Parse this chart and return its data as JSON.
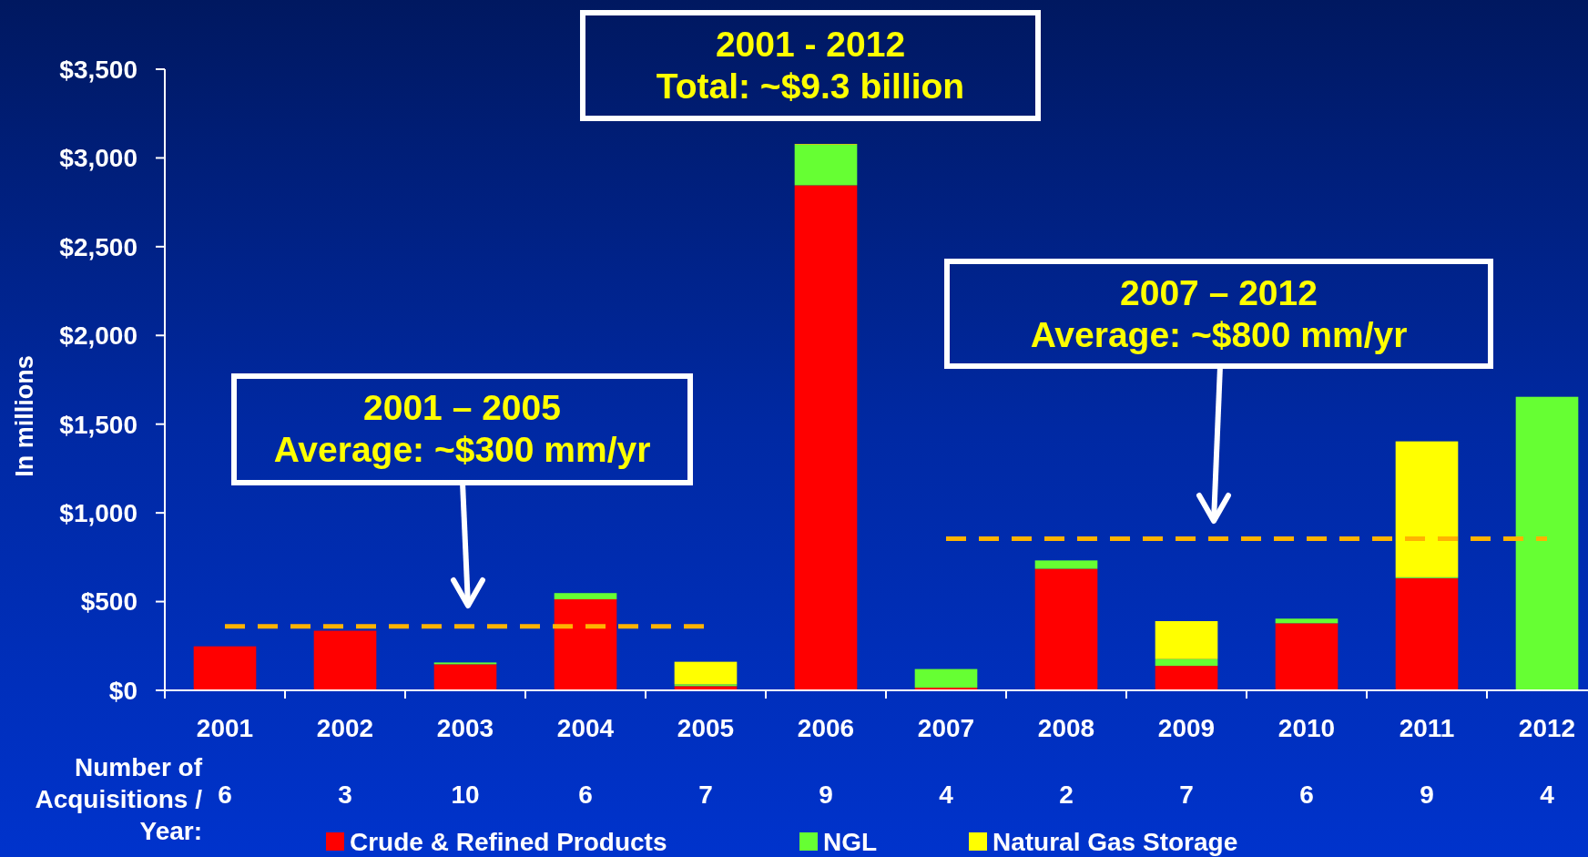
{
  "chart_data": {
    "type": "bar",
    "stacked": true,
    "ylabel": "In millions",
    "categories": [
      "2001",
      "2002",
      "2003",
      "2004",
      "2005",
      "2006",
      "2007",
      "2008",
      "2009",
      "2010",
      "2011",
      "2012"
    ],
    "series": [
      {
        "name": "Crude & Refined Products",
        "color": "#ff0000",
        "values": [
          248,
          336,
          147,
          513,
          24,
          2846,
          15,
          685,
          138,
          378,
          632,
          0
        ]
      },
      {
        "name": "NGL",
        "color": "#66ff33",
        "values": [
          0,
          0,
          10,
          35,
          10,
          228,
          105,
          47,
          38,
          26,
          5,
          1654
        ]
      },
      {
        "name": "Natural Gas Storage",
        "color": "#ffff00",
        "values": [
          0,
          0,
          0,
          0,
          127,
          4,
          0,
          0,
          214,
          0,
          766,
          0
        ]
      },
      {
        "type": "line",
        "color": "#ffb300",
        "values": [
          360,
          360,
          360,
          360,
          360,
          null,
          null,
          null,
          null,
          null,
          null,
          null
        ]
      },
      {
        "type": "line",
        "color": "#ffb300",
        "values": [
          null,
          null,
          null,
          null,
          null,
          null,
          855,
          855,
          855,
          855,
          855,
          855
        ]
      }
    ],
    "ylim": [
      0,
      3500
    ],
    "yticks": [
      {
        "value": 0,
        "label": "$0"
      },
      {
        "value": 500,
        "label": "$500"
      },
      {
        "value": 1000,
        "label": "$1,000"
      },
      {
        "value": 1500,
        "label": "$1,500"
      },
      {
        "value": 2000,
        "label": "$2,000"
      },
      {
        "value": 2500,
        "label": "$2,500"
      },
      {
        "value": 3000,
        "label": "$3,000"
      },
      {
        "value": 3500,
        "label": "$3,500"
      }
    ],
    "grid": false,
    "legend": "bottom",
    "line_style": "dashed",
    "annotations": [
      "2001 - 2012\nTotal: ~$9.3 billion",
      "2007 – 2012\nAverage: ~$800 mm/yr",
      "2001 – 2005\nAverage: ~$300 mm/yr",
      "Number of\nAcquisitions /\nYear:",
      "6",
      "3",
      "10",
      "6",
      "7",
      "9",
      "4",
      "2",
      "7",
      "6",
      "9",
      "4"
    ]
  }
}
